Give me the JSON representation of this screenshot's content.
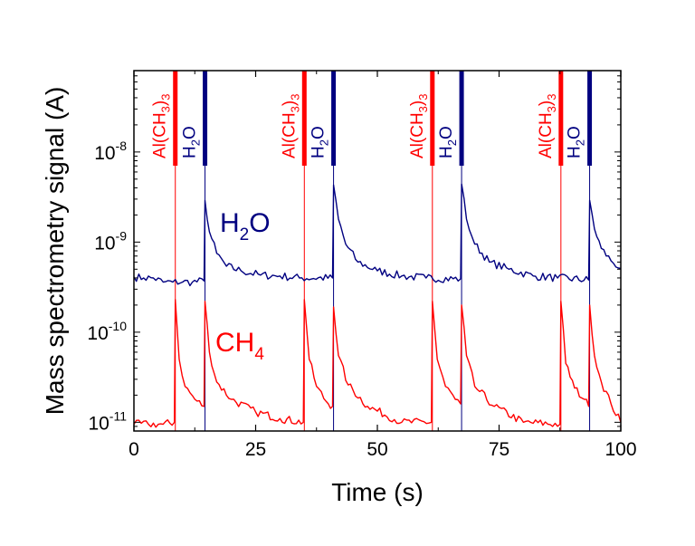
{
  "chart_data": {
    "type": "line",
    "xlabel": "Time (s)",
    "ylabel": "Mass spectrometry signal (A)",
    "xlim": [
      0,
      100
    ],
    "ylim": [
      8e-12,
      8e-08
    ],
    "y_scale": "log",
    "x_ticks": [
      0,
      25,
      50,
      75,
      100
    ],
    "x_tick_labels": [
      "0",
      "25",
      "50",
      "75",
      "100"
    ],
    "y_ticks": [
      {
        "value": 1e-11,
        "base": "10",
        "exp": "-11"
      },
      {
        "value": 1e-10,
        "base": "10",
        "exp": "-10"
      },
      {
        "value": 1e-09,
        "base": "10",
        "exp": "-9"
      },
      {
        "value": 1e-08,
        "base": "10",
        "exp": "-8"
      }
    ],
    "colors": {
      "tma": "#ff0000",
      "h2o": "#000080"
    },
    "pulse_labels": {
      "tma": {
        "pre": "Al(CH",
        "sub": "3",
        "post": ")",
        "sub2": "3"
      },
      "h2o": {
        "pre": "H",
        "sub": "2",
        "post": "O"
      }
    },
    "pulses": [
      {
        "species": "tma",
        "t": 8.5
      },
      {
        "species": "h2o",
        "t": 14.6
      },
      {
        "species": "tma",
        "t": 35.0
      },
      {
        "species": "h2o",
        "t": 41.0
      },
      {
        "species": "tma",
        "t": 61.3
      },
      {
        "species": "h2o",
        "t": 67.3
      },
      {
        "species": "tma",
        "t": 87.7
      },
      {
        "species": "h2o",
        "t": 93.6
      }
    ],
    "series": [
      {
        "name": "H2O",
        "label": {
          "pre": "H",
          "sub": "2",
          "post": "O"
        },
        "color": "#000080",
        "baseline": 3.8e-10,
        "values": [
          [
            0,
            4.1e-10
          ],
          [
            2,
            4e-10
          ],
          [
            4,
            4e-10
          ],
          [
            6,
            3.6e-10
          ],
          [
            8,
            3.6e-10
          ],
          [
            10,
            3.6e-10
          ],
          [
            12,
            3.6e-10
          ],
          [
            14.4,
            3.7e-10
          ],
          [
            14.6,
            2.9e-09
          ],
          [
            15.5,
            1.3e-09
          ],
          [
            17,
            7.5e-10
          ],
          [
            19,
            5.4e-10
          ],
          [
            22,
            4.8e-10
          ],
          [
            26,
            4.3e-10
          ],
          [
            30,
            4.2e-10
          ],
          [
            34,
            4e-10
          ],
          [
            40.8,
            4e-10
          ],
          [
            41.0,
            4.3e-09
          ],
          [
            42,
            1.8e-09
          ],
          [
            43.5,
            9.5e-10
          ],
          [
            46,
            6e-10
          ],
          [
            50,
            4.8e-10
          ],
          [
            55,
            4.2e-10
          ],
          [
            60,
            4e-10
          ],
          [
            67.1,
            3.9e-10
          ],
          [
            67.3,
            4.4e-09
          ],
          [
            68.3,
            1.8e-09
          ],
          [
            70,
            9.5e-10
          ],
          [
            73,
            6e-10
          ],
          [
            77,
            5e-10
          ],
          [
            82,
            4.2e-10
          ],
          [
            87,
            4e-10
          ],
          [
            93.4,
            3.8e-10
          ],
          [
            93.6,
            2.9e-09
          ],
          [
            94.6,
            1.4e-09
          ],
          [
            96,
            8.5e-10
          ],
          [
            98,
            6.2e-10
          ],
          [
            100,
            5.1e-10
          ]
        ]
      },
      {
        "name": "CH4",
        "label": {
          "pre": "CH",
          "sub": "4",
          "post": ""
        },
        "color": "#ff0000",
        "baseline": 9.5e-12,
        "values": [
          [
            0,
            9.5e-12
          ],
          [
            3,
            9.5e-12
          ],
          [
            6,
            9.5e-12
          ],
          [
            8.3,
            1e-11
          ],
          [
            8.5,
            2.3e-10
          ],
          [
            9.3,
            5e-11
          ],
          [
            10.5,
            2.5e-11
          ],
          [
            12.5,
            1.8e-11
          ],
          [
            14.4,
            1.5e-11
          ],
          [
            14.6,
            2.2e-10
          ],
          [
            15.5,
            6e-11
          ],
          [
            17,
            2.8e-11
          ],
          [
            20,
            1.8e-11
          ],
          [
            25,
            1.3e-11
          ],
          [
            30,
            1.1e-11
          ],
          [
            34.8,
            1e-11
          ],
          [
            35.0,
            2.3e-10
          ],
          [
            36,
            5e-11
          ],
          [
            37.5,
            2.5e-11
          ],
          [
            39.5,
            1.7e-11
          ],
          [
            40.8,
            1.5e-11
          ],
          [
            41.0,
            1.9e-10
          ],
          [
            42,
            5.5e-11
          ],
          [
            44,
            2.6e-11
          ],
          [
            48,
            1.5e-11
          ],
          [
            55,
            1e-11
          ],
          [
            61.1,
            1e-11
          ],
          [
            61.3,
            2.2e-10
          ],
          [
            62.3,
            5e-11
          ],
          [
            64,
            2.5e-11
          ],
          [
            66,
            1.8e-11
          ],
          [
            67.1,
            1.6e-11
          ],
          [
            67.3,
            2e-10
          ],
          [
            68.3,
            5.5e-11
          ],
          [
            70,
            2.5e-11
          ],
          [
            74,
            1.5e-11
          ],
          [
            80,
            1e-11
          ],
          [
            87.5,
            9.5e-12
          ],
          [
            87.7,
            2.2e-10
          ],
          [
            88.7,
            4.5e-11
          ],
          [
            90.5,
            2.4e-11
          ],
          [
            92.5,
            1.8e-11
          ],
          [
            93.4,
            1.5e-11
          ],
          [
            93.6,
            2e-10
          ],
          [
            94.6,
            5.5e-11
          ],
          [
            96,
            2.8e-11
          ],
          [
            98,
            1.6e-11
          ],
          [
            100,
            1e-11
          ]
        ]
      }
    ]
  }
}
